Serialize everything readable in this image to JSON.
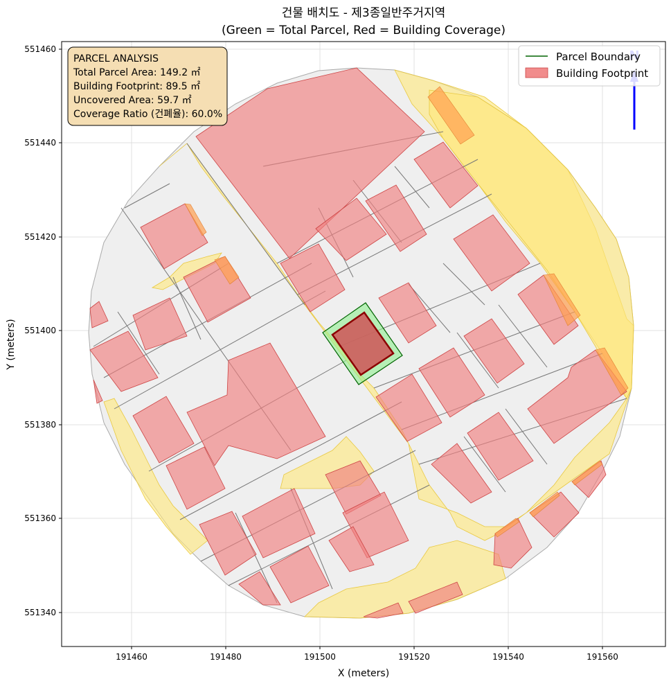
{
  "title_line1": "건물 배치도 - 제3종일반주거지역",
  "title_line2": "(Green = Total Parcel, Red = Building Coverage)",
  "xlabel": "X (meters)",
  "ylabel": "Y (meters)",
  "x_ticks": [
    "191460",
    "191480",
    "191500",
    "191520",
    "191540",
    "191560"
  ],
  "y_ticks": [
    "551460",
    "551440",
    "551420",
    "551400",
    "551380",
    "551360",
    "551340"
  ],
  "info_box": {
    "line1": "PARCEL ANALYSIS",
    "line2": "Total Parcel Area: 149.2 ㎡",
    "line3": "Building Footprint: 89.5 ㎡",
    "line4": "Uncovered Area: 59.7 ㎡",
    "line5": "Coverage Ratio (건폐율): 60.0%"
  },
  "legend": {
    "item1": "Parcel Boundary",
    "item2": "Building Footprint"
  },
  "north_arrow_label": "N",
  "colors": {
    "road": "#FFE77A",
    "parcel_gray": "#EFEFEF",
    "building_red": "#F08080",
    "highlight_parcel": "#90EE90",
    "highlight_building": "#CD5C5C",
    "info_box_bg": "#F5DEB3",
    "north_arrow": "#0000FF"
  },
  "chart_data": {
    "type": "map",
    "xlim": [
      191445,
      191573
    ],
    "ylim": [
      551333,
      551462
    ],
    "grid": true,
    "legend_position": "top-right",
    "info_box_position": "top-left",
    "highlight_parcel_area_m2": 149.2,
    "highlight_building_area_m2": 89.5,
    "uncovered_area_m2": 59.7,
    "coverage_ratio_percent": 60.0
  }
}
